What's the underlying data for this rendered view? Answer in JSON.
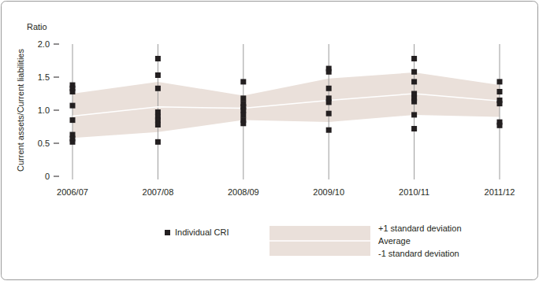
{
  "chart_data": {
    "type": "scatter",
    "title": "Ratio",
    "y_label": "Current assets/Current liabilities",
    "categories": [
      "2006/07",
      "2007/08",
      "2008/09",
      "2009/10",
      "2010/11",
      "2011/12"
    ],
    "ylim": [
      0,
      2.0
    ],
    "yticks": [
      0,
      0.5,
      {
        "value": 1.0,
        "label": "1.0"
      },
      1.5,
      {
        "value": 2.0,
        "label": "2.0"
      }
    ],
    "grid": true,
    "series": [
      {
        "name": "Individual CRI",
        "type": "scatter",
        "marker": "square",
        "color": "#231f20",
        "values": [
          [
            1.38,
            1.33,
            1.28,
            1.07,
            0.85,
            0.63,
            0.57,
            0.52
          ],
          [
            1.78,
            1.53,
            1.33,
            0.97,
            0.9,
            0.85,
            0.78,
            0.52
          ],
          [
            1.43,
            1.18,
            1.1,
            1.05,
            1.0,
            0.93,
            0.85,
            0.8
          ],
          [
            1.63,
            1.58,
            1.33,
            1.18,
            1.12,
            0.95,
            0.7
          ],
          [
            1.78,
            1.58,
            1.43,
            1.25,
            1.18,
            1.13,
            0.93,
            0.72
          ],
          [
            1.43,
            1.28,
            1.15,
            1.1,
            0.82,
            0.77
          ]
        ]
      },
      {
        "name": "+1 standard deviation",
        "type": "area",
        "color": "#eae0da",
        "values": [
          1.25,
          1.43,
          1.22,
          1.48,
          1.57,
          1.38
        ]
      },
      {
        "name": "Average",
        "type": "line",
        "color": "#ffffff",
        "values": [
          0.91,
          1.05,
          1.03,
          1.15,
          1.25,
          1.14
        ]
      },
      {
        "name": "-1 standard deviation",
        "type": "area",
        "color": "#eae0da",
        "values": [
          0.58,
          0.67,
          0.85,
          0.82,
          0.93,
          0.9
        ]
      }
    ]
  }
}
